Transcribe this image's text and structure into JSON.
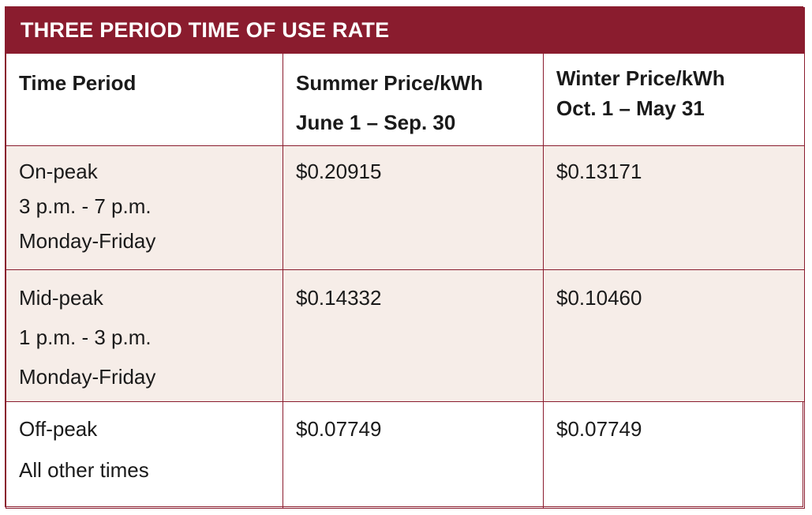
{
  "title": "THREE PERIOD TIME OF USE RATE",
  "headers": {
    "col1": [
      "Time Period"
    ],
    "col2": [
      "Summer Price/kWh",
      "June 1 – Sep. 30"
    ],
    "col3": [
      "Winter Price/kWh",
      "Oct. 1 – May 31"
    ]
  },
  "rows": [
    {
      "period": [
        "On-peak",
        "3 p.m. - 7 p.m.",
        "Monday-Friday"
      ],
      "summer": "$0.20915",
      "winter": "$0.13171"
    },
    {
      "period": [
        "Mid-peak",
        "1 p.m. - 3 p.m.",
        "Monday-Friday"
      ],
      "summer": "$0.14332",
      "winter": "$0.10460"
    },
    {
      "period": [
        "Off-peak",
        "All other times"
      ],
      "summer": "$0.07749",
      "winter": "$0.07749"
    }
  ],
  "colors": {
    "accent": "#8a1c2e",
    "row_shade": "#f6ede8"
  }
}
